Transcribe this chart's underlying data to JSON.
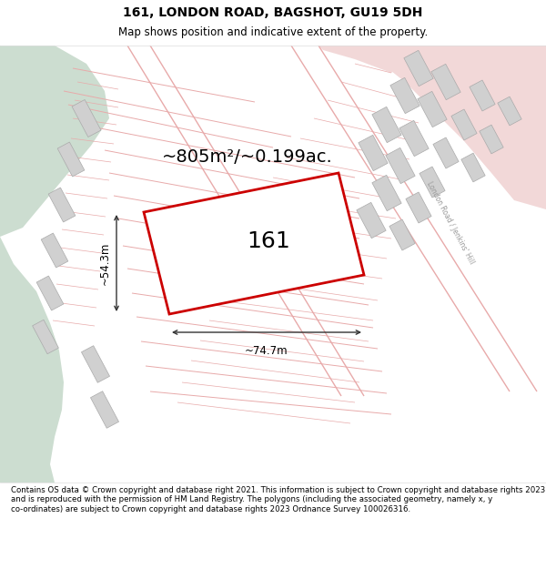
{
  "title": "161, LONDON ROAD, BAGSHOT, GU19 5DH",
  "subtitle": "Map shows position and indicative extent of the property.",
  "footer": "Contains OS data © Crown copyright and database right 2021. This information is subject to Crown copyright and database rights 2023 and is reproduced with the permission of HM Land Registry. The polygons (including the associated geometry, namely x, y co-ordinates) are subject to Crown copyright and database rights 2023 Ordnance Survey 100026316.",
  "area_label": "~805m²/~0.199ac.",
  "width_label": "~74.7m",
  "height_label": "~54.3m",
  "property_label": "161",
  "bg_color": "#f5f3f0",
  "green_color": "#ccddd0",
  "plot_fill": "#ffffff",
  "plot_edge_color": "#cc0000",
  "building_fill": "#d0d0d0",
  "building_edge": "#aaaaaa",
  "parcel_line_color": "#e8aaaa",
  "road_fill": "#f2d8d8",
  "dim_color": "#333333",
  "road_label_color": "#999999",
  "title_fontsize": 10,
  "subtitle_fontsize": 8.5,
  "footer_fontsize": 6.2,
  "area_fontsize": 14,
  "dim_fontsize": 8.5,
  "prop_fontsize": 18
}
